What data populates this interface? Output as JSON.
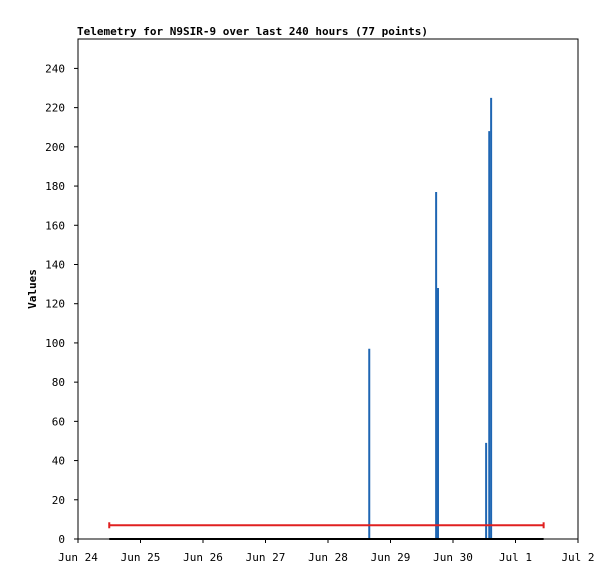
{
  "chart_data": {
    "type": "bar",
    "title": "Telemetry for N9SIR-9 over last 240 hours (77 points)",
    "xlabel": "",
    "ylabel": "Values",
    "ylim": [
      0,
      255
    ],
    "yticks": [
      0,
      20,
      40,
      60,
      80,
      100,
      120,
      140,
      160,
      180,
      200,
      220,
      240
    ],
    "xlim_days": [
      0,
      8
    ],
    "xticks": [
      "Jun 24",
      "Jun 25",
      "Jun 26",
      "Jun 27",
      "Jun 28",
      "Jun 29",
      "Jun 30",
      "Jul 1",
      "Jul 2"
    ],
    "grid": false,
    "series": [
      {
        "color": "#1f66b3",
        "points": [
          {
            "x": "Jun 28 ~12:00",
            "day": 4.66,
            "value": 97
          },
          {
            "x": "Jun 29 ~14:00",
            "day": 5.73,
            "value": 177
          },
          {
            "x": "Jun 29 ~14:30",
            "day": 5.76,
            "value": 128
          },
          {
            "x": "Jun 30 ~09:00",
            "day": 6.53,
            "value": 49
          },
          {
            "x": "Jun 30 ~10:00",
            "day": 6.58,
            "value": 208
          },
          {
            "x": "Jun 30 ~10:30",
            "day": 6.61,
            "value": 225
          }
        ]
      },
      {
        "color": "#000000",
        "baseline": true,
        "range_days": [
          0.5,
          7.45
        ],
        "value": 0
      },
      {
        "color": "#e02020",
        "range": true,
        "range_days": [
          0.5,
          7.45
        ],
        "value": 7
      }
    ]
  }
}
